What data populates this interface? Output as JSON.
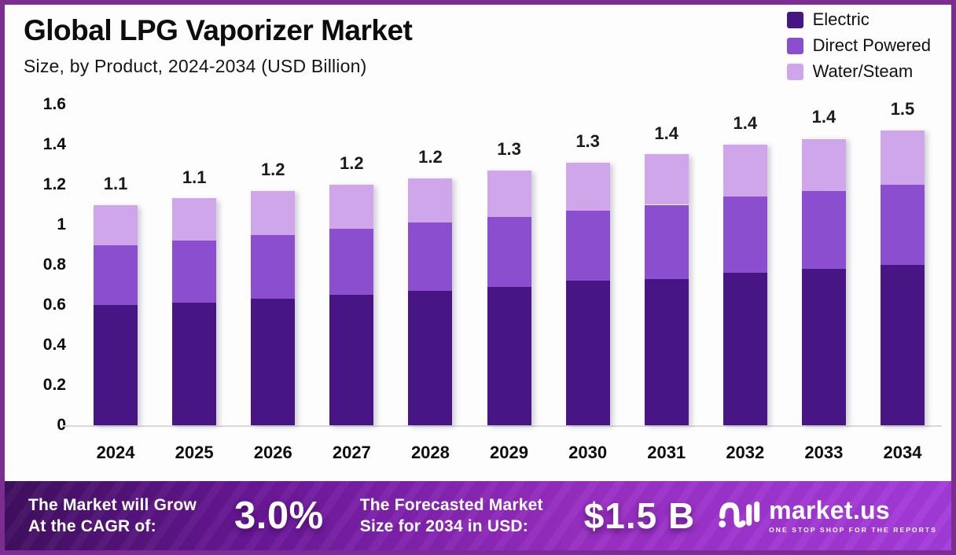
{
  "header": {
    "title": "Global LPG Vaporizer Market",
    "subtitle": "Size, by Product, 2024-2034 (USD Billion)"
  },
  "colors": {
    "electric": "#481584",
    "direct_powered": "#8a4ecf",
    "water_steam": "#cfa6e9",
    "border": "#7c2d90",
    "baseline": "#d9d9d9",
    "banner_gradient_start": "#3f0f5e",
    "banner_gradient_end": "#a43bdb",
    "banner_text": "#ffffff",
    "text": "#0d0d0d"
  },
  "chart_data": {
    "type": "bar",
    "stacked": true,
    "title": "Global LPG Vaporizer Market Size, by Product, 2024-2034 (USD Billion)",
    "categories": [
      "2024",
      "2025",
      "2026",
      "2027",
      "2028",
      "2029",
      "2030",
      "2031",
      "2032",
      "2033",
      "2034"
    ],
    "series": [
      {
        "name": "Electric",
        "color": "#481584",
        "values": [
          0.6,
          0.61,
          0.63,
          0.65,
          0.67,
          0.69,
          0.72,
          0.73,
          0.76,
          0.78,
          0.8
        ]
      },
      {
        "name": "Direct Powered",
        "color": "#8a4ecf",
        "values": [
          0.3,
          0.31,
          0.32,
          0.33,
          0.34,
          0.35,
          0.35,
          0.37,
          0.38,
          0.39,
          0.4
        ]
      },
      {
        "name": "Water/Steam",
        "color": "#cfa6e9",
        "values": [
          0.2,
          0.21,
          0.22,
          0.22,
          0.22,
          0.23,
          0.24,
          0.25,
          0.26,
          0.26,
          0.27
        ]
      }
    ],
    "totals_labels": [
      "1.1",
      "1.1",
      "1.2",
      "1.2",
      "1.2",
      "1.3",
      "1.3",
      "1.4",
      "1.4",
      "1.4",
      "1.5"
    ],
    "xlabel": "",
    "ylabel": "",
    "ylim": [
      0,
      1.6
    ],
    "yticks": [
      "0",
      "0.2",
      "0.4",
      "0.6",
      "0.8",
      "1",
      "1.2",
      "1.4",
      "1.6"
    ],
    "grid": false,
    "legend_position": "top-right"
  },
  "footer": {
    "cagr_label_line1": "The Market will Grow",
    "cagr_label_line2": "At the CAGR of:",
    "cagr_value": "3.0%",
    "forecast_label_line1": "The Forecasted Market",
    "forecast_label_line2": "Size for 2034 in USD:",
    "forecast_value": "$1.5 B",
    "brand": {
      "name": "market.us",
      "tagline": "ONE STOP SHOP FOR THE REPORTS"
    }
  }
}
